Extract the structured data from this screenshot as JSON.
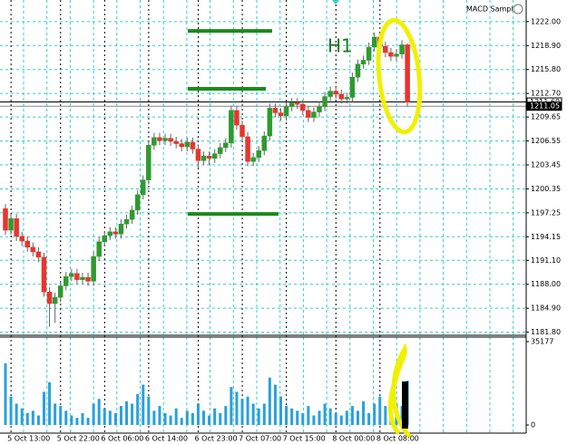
{
  "chart_data": {
    "type": "candlestick",
    "annotation": "H1",
    "expert": "MACD Sample",
    "up_color": "#2f9a2f",
    "down_color": "#e8352e",
    "ylim": [
      1181.4,
      1224.8
    ],
    "yticks": [
      {
        "value": 1222.0,
        "label": "1222.00"
      },
      {
        "value": 1218.9,
        "label": "1218.90"
      },
      {
        "value": 1215.8,
        "label": "1215.80"
      },
      {
        "value": 1212.7,
        "label": "1212.70"
      },
      {
        "value": 1209.65,
        "label": "1209.65"
      },
      {
        "value": 1206.55,
        "label": "1206.55"
      },
      {
        "value": 1203.45,
        "label": "1203.45"
      },
      {
        "value": 1200.35,
        "label": "1200.35"
      },
      {
        "value": 1197.25,
        "label": "1197.25"
      },
      {
        "value": 1194.15,
        "label": "1194.15"
      },
      {
        "value": 1191.1,
        "label": "1191.10"
      },
      {
        "value": 1188.0,
        "label": "1188.00"
      },
      {
        "value": 1184.9,
        "label": "1184.90"
      },
      {
        "value": 1181.8,
        "label": "1181.80"
      }
    ],
    "price_labels": [
      {
        "value": 1211.6,
        "label": "1211.60"
      },
      {
        "value": 1211.05,
        "label": "1211.05"
      }
    ],
    "levels": [
      1220.8,
      1213.3,
      1197.1
    ],
    "level_color": "#1a8a1a",
    "grid": true,
    "categories": [
      null,
      null,
      "5 Oct 13:00",
      null,
      null,
      null,
      null,
      null,
      null,
      null,
      null,
      "5 Oct 22:00",
      null,
      null,
      null,
      null,
      null,
      null,
      null,
      "6 Oct 06:00",
      null,
      null,
      null,
      null,
      null,
      null,
      null,
      "6 Oct 14:00",
      null,
      null,
      null,
      null,
      null,
      null,
      null,
      null,
      "6 Oct 23:00",
      null,
      null,
      null,
      null,
      null,
      null,
      null,
      "7 Oct 07:00",
      null,
      null,
      null,
      null,
      null,
      null,
      null,
      "7 Oct 15:00",
      null,
      null,
      null,
      null,
      null,
      null,
      null,
      null,
      "8 Oct 00:00",
      null,
      null,
      null,
      null,
      null,
      null,
      null,
      "8 Oct 08:00",
      null,
      null,
      null,
      null
    ],
    "open": [
      1197.8,
      1195.0,
      1196.5,
      1194.2,
      1193.6,
      1192.8,
      1192.2,
      1191.5,
      1187.0,
      1185.5,
      1186.3,
      1187.8,
      1189.0,
      1189.4,
      1188.6,
      1188.9,
      1188.4,
      1191.6,
      1193.5,
      1194.3,
      1194.8,
      1194.5,
      1195.8,
      1196.4,
      1197.6,
      1199.6,
      1201.5,
      1206.0,
      1207.0,
      1206.6,
      1206.9,
      1206.5,
      1206.2,
      1205.8,
      1206.4,
      1205.5,
      1204.0,
      1204.6,
      1204.3,
      1204.9,
      1205.7,
      1206.3,
      1210.5,
      1208.6,
      1207.1,
      1203.9,
      1204.4,
      1205.3,
      1207.2,
      1210.8,
      1210.2,
      1209.8,
      1211.0,
      1211.5,
      1211.3,
      1210.5,
      1209.6,
      1210.3,
      1211.0,
      1212.3,
      1213.0,
      1212.6,
      1212.0,
      1212.2,
      1214.8,
      1216.5,
      1217.0,
      1218.7,
      1220.0,
      1218.8,
      1218.0,
      1217.5,
      1217.8,
      1219.0
    ],
    "high": [
      1198.4,
      1197.1,
      1197.1,
      1194.8,
      1194.2,
      1193.4,
      1192.8,
      1192.1,
      1187.6,
      1186.9,
      1188.4,
      1189.6,
      1190.0,
      1190.0,
      1189.5,
      1189.5,
      1192.2,
      1194.1,
      1194.9,
      1195.4,
      1195.4,
      1196.4,
      1197.0,
      1198.2,
      1200.2,
      1202.1,
      1206.6,
      1207.6,
      1207.6,
      1207.5,
      1207.5,
      1207.1,
      1206.8,
      1207.0,
      1207.0,
      1206.1,
      1205.2,
      1205.2,
      1205.5,
      1206.3,
      1206.9,
      1211.1,
      1211.1,
      1209.2,
      1207.7,
      1205.0,
      1205.9,
      1207.8,
      1211.4,
      1211.4,
      1210.8,
      1211.6,
      1212.1,
      1212.1,
      1211.9,
      1211.1,
      1210.9,
      1211.6,
      1212.9,
      1213.6,
      1213.6,
      1213.2,
      1212.8,
      1215.4,
      1217.1,
      1217.6,
      1219.3,
      1220.6,
      1220.6,
      1219.4,
      1218.6,
      1218.4,
      1219.6,
      1219.2
    ],
    "low": [
      1194.4,
      1194.4,
      1193.6,
      1193.0,
      1192.2,
      1191.6,
      1190.9,
      1186.4,
      1182.5,
      1183.0,
      1185.7,
      1187.2,
      1188.4,
      1188.0,
      1188.0,
      1187.8,
      1187.8,
      1191.0,
      1192.9,
      1193.7,
      1193.9,
      1193.9,
      1195.2,
      1195.8,
      1197.0,
      1199.0,
      1200.9,
      1205.4,
      1206.0,
      1206.0,
      1205.9,
      1205.6,
      1205.2,
      1205.2,
      1204.9,
      1203.0,
      1203.4,
      1203.5,
      1203.7,
      1204.3,
      1205.1,
      1205.7,
      1208.0,
      1206.5,
      1203.3,
      1203.3,
      1203.8,
      1204.7,
      1206.6,
      1209.6,
      1209.2,
      1209.2,
      1210.4,
      1210.7,
      1209.9,
      1209.0,
      1209.0,
      1209.7,
      1210.4,
      1211.7,
      1212.0,
      1211.4,
      1211.4,
      1211.6,
      1214.2,
      1215.9,
      1216.4,
      1218.1,
      1218.2,
      1217.4,
      1216.9,
      1216.9,
      1217.2,
      1211.0
    ],
    "close": [
      1195.0,
      1196.5,
      1194.2,
      1193.6,
      1192.8,
      1192.2,
      1191.5,
      1187.0,
      1185.5,
      1186.3,
      1187.8,
      1189.0,
      1189.4,
      1188.6,
      1188.9,
      1188.4,
      1191.6,
      1193.5,
      1194.3,
      1194.8,
      1194.5,
      1195.8,
      1196.4,
      1197.6,
      1199.6,
      1201.5,
      1206.0,
      1207.0,
      1206.6,
      1206.9,
      1206.5,
      1206.2,
      1205.8,
      1206.4,
      1205.5,
      1204.0,
      1204.6,
      1204.3,
      1204.9,
      1205.7,
      1206.3,
      1210.5,
      1208.6,
      1207.1,
      1203.9,
      1204.4,
      1205.3,
      1207.2,
      1210.8,
      1210.2,
      1209.8,
      1211.0,
      1211.5,
      1211.3,
      1210.5,
      1209.6,
      1210.3,
      1211.0,
      1212.3,
      1213.0,
      1212.6,
      1212.0,
      1212.2,
      1214.8,
      1216.5,
      1217.0,
      1218.7,
      1220.0,
      1218.8,
      1218.0,
      1217.5,
      1217.8,
      1219.0,
      1211.6
    ],
    "volume": {
      "color": "#2aa0dc",
      "ylim": [
        0,
        35177
      ],
      "yticks": [
        35177,
        0
      ],
      "values": [
        26000,
        12000,
        9000,
        7000,
        5000,
        6000,
        4000,
        14000,
        18000,
        9000,
        8000,
        6000,
        4000,
        3000,
        5000,
        3000,
        9000,
        11000,
        7000,
        6000,
        5000,
        8000,
        10000,
        9000,
        13000,
        17000,
        12000,
        6000,
        8000,
        5000,
        4000,
        7000,
        3000,
        6000,
        5000,
        9000,
        6000,
        4000,
        7000,
        5000,
        8000,
        16000,
        14000,
        11000,
        12000,
        9000,
        7000,
        9000,
        20000,
        17000,
        12000,
        8000,
        7000,
        6000,
        5000,
        8000,
        4000,
        6000,
        9000,
        7000,
        5000,
        4000,
        6000,
        8000,
        6000,
        10000,
        5000,
        9000,
        12000,
        8000,
        11000,
        9000,
        8000,
        18700
      ]
    }
  }
}
